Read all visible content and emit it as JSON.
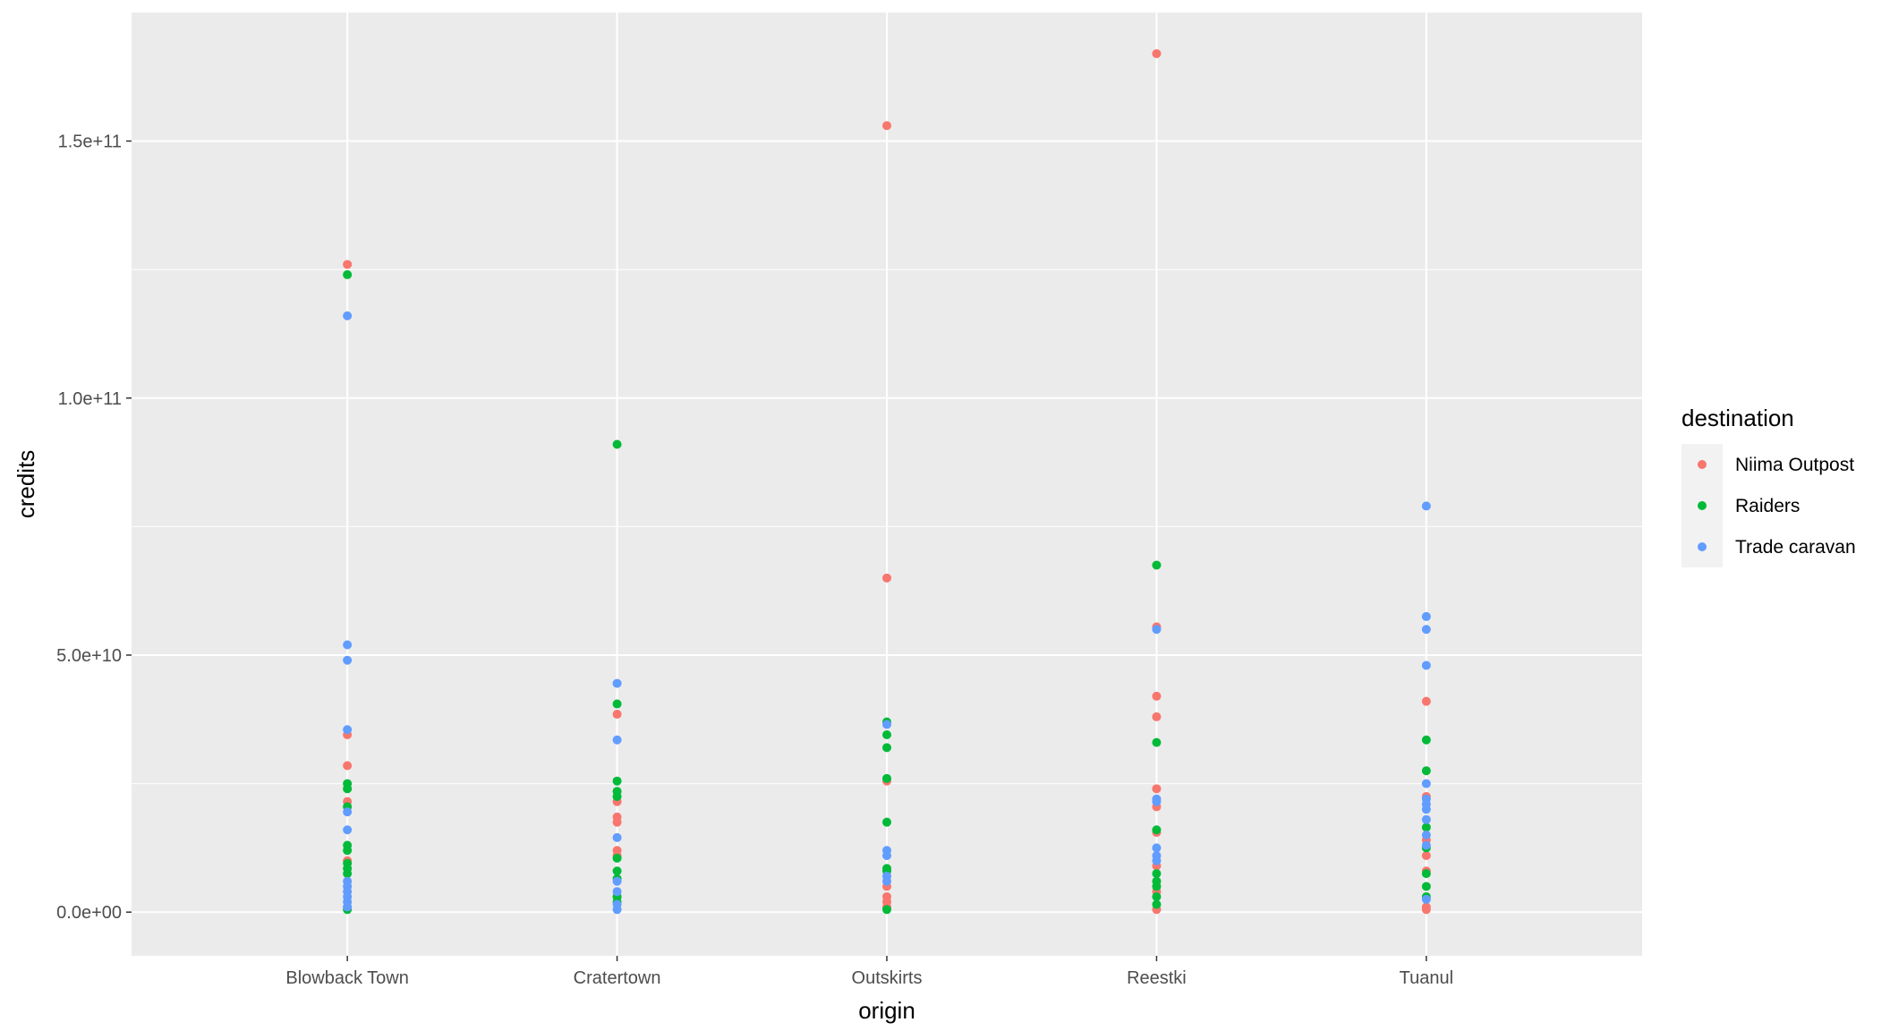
{
  "chart_data": {
    "type": "scatter",
    "xlabel": "origin",
    "ylabel": "credits",
    "categories": [
      "Blowback Town",
      "Cratertown",
      "Outskirts",
      "Reestki",
      "Tuanul"
    ],
    "ylim": [
      -8500000000.0,
      175000000000.0
    ],
    "y_ticks": [
      0,
      50000000000.0,
      100000000000.0,
      150000000000.0
    ],
    "y_tick_labels": [
      "0.0e+00",
      "5.0e+10",
      "1.0e+11",
      "1.5e+11"
    ],
    "grid": true,
    "legend": {
      "title": "destination",
      "position": "right"
    },
    "colors": {
      "panel": "#ebebeb",
      "grid": "#ffffff"
    },
    "series": [
      {
        "name": "Niima Outpost",
        "color": "#F8766D",
        "points": [
          [
            "Blowback Town",
            126000000000.0
          ],
          [
            "Blowback Town",
            34500000000.0
          ],
          [
            "Blowback Town",
            28500000000.0
          ],
          [
            "Blowback Town",
            21500000000.0
          ],
          [
            "Blowback Town",
            10000000000.0
          ],
          [
            "Blowback Town",
            1000000000.0
          ],
          [
            "Cratertown",
            38500000000.0
          ],
          [
            "Cratertown",
            21500000000.0
          ],
          [
            "Cratertown",
            18500000000.0
          ],
          [
            "Cratertown",
            17500000000.0
          ],
          [
            "Cratertown",
            12000000000.0
          ],
          [
            "Cratertown",
            11000000000.0
          ],
          [
            "Cratertown",
            3000000000.0
          ],
          [
            "Outskirts",
            153000000000.0
          ],
          [
            "Outskirts",
            65000000000.0
          ],
          [
            "Outskirts",
            25500000000.0
          ],
          [
            "Outskirts",
            5000000000.0
          ],
          [
            "Outskirts",
            3000000000.0
          ],
          [
            "Outskirts",
            2000000000.0
          ],
          [
            "Outskirts",
            1000000000.0
          ],
          [
            "Reestki",
            167000000000.0
          ],
          [
            "Reestki",
            55500000000.0
          ],
          [
            "Reestki",
            42000000000.0
          ],
          [
            "Reestki",
            38000000000.0
          ],
          [
            "Reestki",
            24000000000.0
          ],
          [
            "Reestki",
            20500000000.0
          ],
          [
            "Reestki",
            15500000000.0
          ],
          [
            "Reestki",
            9000000000.0
          ],
          [
            "Reestki",
            4000000000.0
          ],
          [
            "Reestki",
            500000000.0
          ],
          [
            "Tuanul",
            41000000000.0
          ],
          [
            "Tuanul",
            22500000000.0
          ],
          [
            "Tuanul",
            14000000000.0
          ],
          [
            "Tuanul",
            11000000000.0
          ],
          [
            "Tuanul",
            8000000000.0
          ],
          [
            "Tuanul",
            1000000000.0
          ],
          [
            "Tuanul",
            500000000.0
          ]
        ]
      },
      {
        "name": "Raiders",
        "color": "#00BA38",
        "points": [
          [
            "Blowback Town",
            124000000000.0
          ],
          [
            "Blowback Town",
            25000000000.0
          ],
          [
            "Blowback Town",
            24000000000.0
          ],
          [
            "Blowback Town",
            20500000000.0
          ],
          [
            "Blowback Town",
            13000000000.0
          ],
          [
            "Blowback Town",
            12000000000.0
          ],
          [
            "Blowback Town",
            9500000000.0
          ],
          [
            "Blowback Town",
            8500000000.0
          ],
          [
            "Blowback Town",
            7500000000.0
          ],
          [
            "Blowback Town",
            500000000.0
          ],
          [
            "Cratertown",
            91000000000.0
          ],
          [
            "Cratertown",
            40500000000.0
          ],
          [
            "Cratertown",
            25500000000.0
          ],
          [
            "Cratertown",
            23500000000.0
          ],
          [
            "Cratertown",
            22500000000.0
          ],
          [
            "Cratertown",
            10500000000.0
          ],
          [
            "Cratertown",
            8000000000.0
          ],
          [
            "Cratertown",
            6500000000.0
          ],
          [
            "Cratertown",
            3000000000.0
          ],
          [
            "Cratertown",
            2000000000.0
          ],
          [
            "Outskirts",
            37000000000.0
          ],
          [
            "Outskirts",
            34500000000.0
          ],
          [
            "Outskirts",
            32000000000.0
          ],
          [
            "Outskirts",
            26000000000.0
          ],
          [
            "Outskirts",
            17500000000.0
          ],
          [
            "Outskirts",
            8500000000.0
          ],
          [
            "Outskirts",
            8000000000.0
          ],
          [
            "Outskirts",
            500000000.0
          ],
          [
            "Reestki",
            67500000000.0
          ],
          [
            "Reestki",
            33000000000.0
          ],
          [
            "Reestki",
            16000000000.0
          ],
          [
            "Reestki",
            7500000000.0
          ],
          [
            "Reestki",
            6000000000.0
          ],
          [
            "Reestki",
            5000000000.0
          ],
          [
            "Reestki",
            3000000000.0
          ],
          [
            "Reestki",
            1500000000.0
          ],
          [
            "Tuanul",
            33500000000.0
          ],
          [
            "Tuanul",
            27500000000.0
          ],
          [
            "Tuanul",
            16500000000.0
          ],
          [
            "Tuanul",
            12500000000.0
          ],
          [
            "Tuanul",
            7500000000.0
          ],
          [
            "Tuanul",
            5000000000.0
          ],
          [
            "Tuanul",
            3000000000.0
          ]
        ]
      },
      {
        "name": "Trade caravan",
        "color": "#619CFF",
        "points": [
          [
            "Blowback Town",
            116000000000.0
          ],
          [
            "Blowback Town",
            52000000000.0
          ],
          [
            "Blowback Town",
            49000000000.0
          ],
          [
            "Blowback Town",
            35500000000.0
          ],
          [
            "Blowback Town",
            19500000000.0
          ],
          [
            "Blowback Town",
            16000000000.0
          ],
          [
            "Blowback Town",
            6000000000.0
          ],
          [
            "Blowback Town",
            5000000000.0
          ],
          [
            "Blowback Town",
            4000000000.0
          ],
          [
            "Blowback Town",
            3000000000.0
          ],
          [
            "Blowback Town",
            2000000000.0
          ],
          [
            "Blowback Town",
            1000000000.0
          ],
          [
            "Cratertown",
            44500000000.0
          ],
          [
            "Cratertown",
            33500000000.0
          ],
          [
            "Cratertown",
            14500000000.0
          ],
          [
            "Cratertown",
            6000000000.0
          ],
          [
            "Cratertown",
            4000000000.0
          ],
          [
            "Cratertown",
            1500000000.0
          ],
          [
            "Cratertown",
            500000000.0
          ],
          [
            "Outskirts",
            36500000000.0
          ],
          [
            "Outskirts",
            12000000000.0
          ],
          [
            "Outskirts",
            11000000000.0
          ],
          [
            "Outskirts",
            7000000000.0
          ],
          [
            "Outskirts",
            6000000000.0
          ],
          [
            "Reestki",
            55000000000.0
          ],
          [
            "Reestki",
            22000000000.0
          ],
          [
            "Reestki",
            21500000000.0
          ],
          [
            "Reestki",
            12500000000.0
          ],
          [
            "Reestki",
            11000000000.0
          ],
          [
            "Reestki",
            10000000000.0
          ],
          [
            "Tuanul",
            79000000000.0
          ],
          [
            "Tuanul",
            57500000000.0
          ],
          [
            "Tuanul",
            55000000000.0
          ],
          [
            "Tuanul",
            48000000000.0
          ],
          [
            "Tuanul",
            25000000000.0
          ],
          [
            "Tuanul",
            22000000000.0
          ],
          [
            "Tuanul",
            21000000000.0
          ],
          [
            "Tuanul",
            20000000000.0
          ],
          [
            "Tuanul",
            18000000000.0
          ],
          [
            "Tuanul",
            15000000000.0
          ],
          [
            "Tuanul",
            13000000000.0
          ],
          [
            "Tuanul",
            2500000000.0
          ]
        ]
      }
    ]
  }
}
